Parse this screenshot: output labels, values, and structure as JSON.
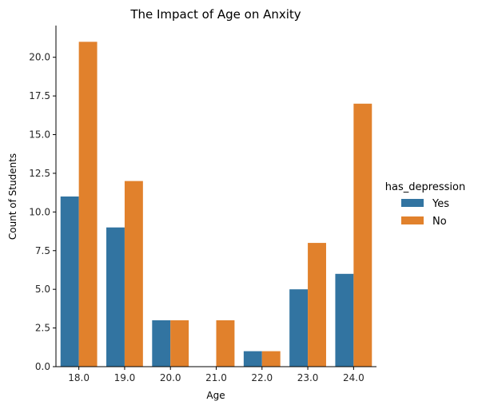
{
  "chart_data": {
    "type": "bar",
    "title": "The Impact of Age on Anxity",
    "xlabel": "Age",
    "ylabel": "Count of Students",
    "categories": [
      "18.0",
      "19.0",
      "20.0",
      "21.0",
      "22.0",
      "23.0",
      "24.0"
    ],
    "series": [
      {
        "name": "Yes",
        "color": "#3274a1",
        "values": [
          11,
          9,
          3,
          0,
          1,
          5,
          6
        ]
      },
      {
        "name": "No",
        "color": "#e1812c",
        "values": [
          21,
          12,
          3,
          3,
          1,
          8,
          17
        ]
      }
    ],
    "ylim": [
      0,
      22.05
    ],
    "yticks": [
      "0.0",
      "2.5",
      "5.0",
      "7.5",
      "10.0",
      "12.5",
      "15.0",
      "17.5",
      "20.0"
    ],
    "legend": {
      "title": "has_depression",
      "placement": "right"
    },
    "grid": false
  }
}
